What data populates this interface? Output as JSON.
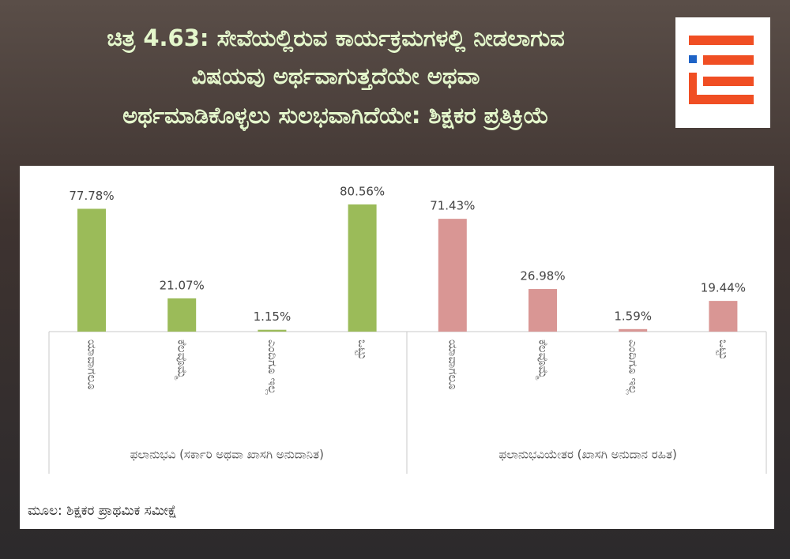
{
  "chart_data": {
    "type": "bar",
    "title": [
      "ಚಿತ್ರ 4.63: ಸೇವೆಯಲ್ಲಿರುವ ಕಾರ್ಯಕ್ರಮಗಳಲ್ಲಿ ನೀಡಲಾಗುವ",
      "ವಿಷಯವು ಅರ್ಥವಾಗುತ್ತದೆಯೇ ಅಥವಾ",
      "ಅರ್ಥಮಾಡಿಕೊಳ್ಳಲು ಸುಲಭವಾಗಿದೆಯೇ: ಶಿಕ್ಷಕರ ಪ್ರತಿಕ್ರಿಯೆ"
    ],
    "categories": [
      "ಯಾವಾಗಲೂ",
      "ಕೆಲವೊಮ್ಮೆ",
      "ಎಂದಿಗೂ ಇಲ್ಲ",
      "ಒಟ್ಟು"
    ],
    "series": [
      {
        "name": "ಫಲಾನುಭವಿ (ಸರ್ಕಾರಿ ಅಥವಾ ಖಾಸಗಿ ಅನುದಾನಿತ)",
        "color": "#9bbb59",
        "values": [
          77.78,
          21.07,
          1.15,
          80.56
        ],
        "value_labels": [
          "77.78%",
          "21.07%",
          "1.15%",
          "80.56%"
        ]
      },
      {
        "name": "ಫಲಾನುಭವಿಯೇತರ (ಖಾಸಗಿ ಅನುದಾನ ರಹಿತ)",
        "color": "#d99694",
        "values": [
          71.43,
          26.98,
          1.59,
          19.44
        ],
        "value_labels": [
          "71.43%",
          "26.98%",
          "1.59%",
          "19.44%"
        ]
      }
    ],
    "source": "ಮೂಲ: ಶಿಕ್ಷಕರ ಪ್ರಾಥಮಿಕ ಸಮೀಕ್ಷೆ"
  }
}
